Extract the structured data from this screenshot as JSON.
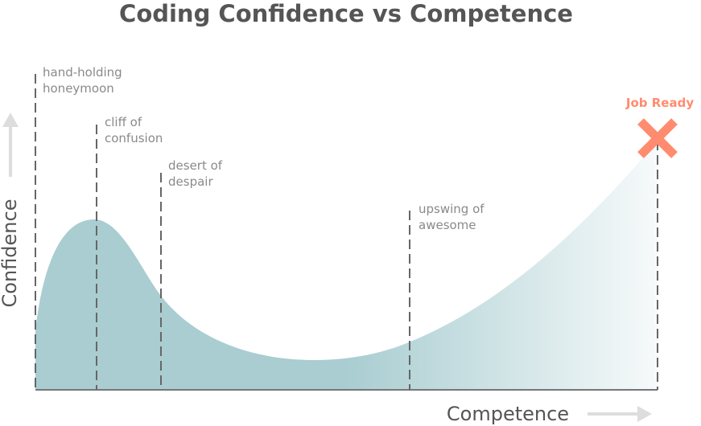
{
  "title": "Coding Confidence vs Competence",
  "x_axis_label": "Competence",
  "y_axis_label": "Confidence",
  "stages": [
    {
      "line1": "hand-holding",
      "line2": "honeymoon"
    },
    {
      "line1": "cliff of",
      "line2": "confusion"
    },
    {
      "line1": "desert of",
      "line2": "despair"
    },
    {
      "line1": "upswing of",
      "line2": "awesome"
    }
  ],
  "goal": {
    "label": "Job Ready",
    "marker": "x-mark-icon"
  },
  "colors": {
    "fill": "#a9cdd1",
    "goal": "#ff8c6f",
    "text": "#555555",
    "arrow": "#dddddd"
  }
}
